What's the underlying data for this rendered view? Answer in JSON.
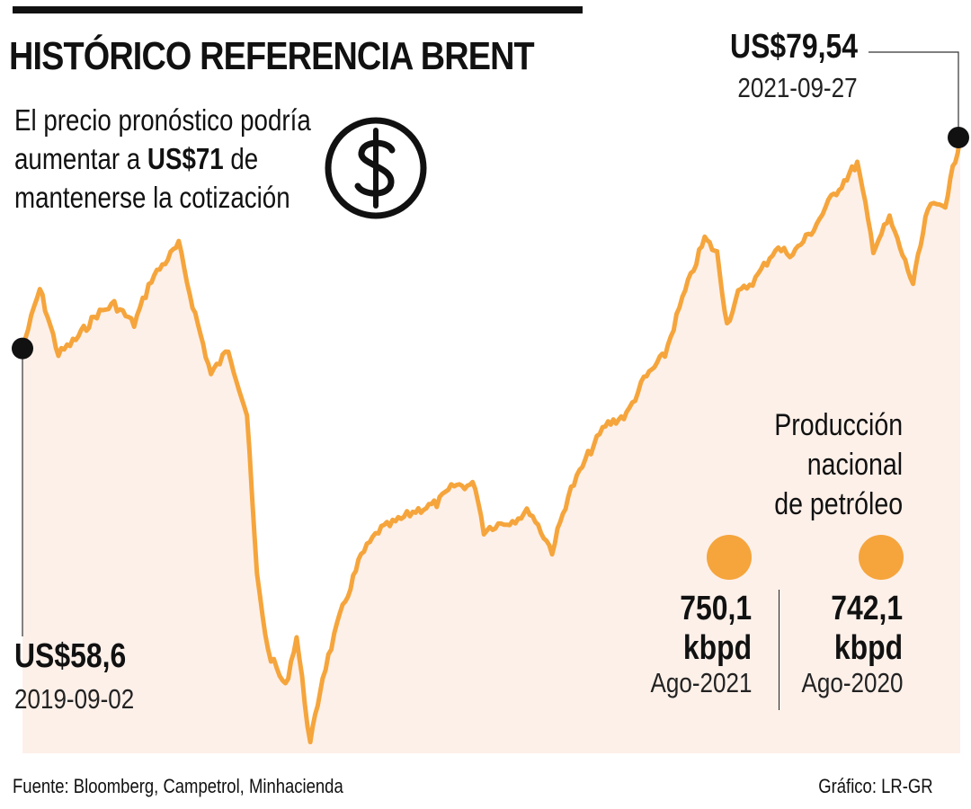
{
  "header": {
    "title": "HISTÓRICO REFERENCIA BRENT",
    "subtitle_line1": "El precio pronóstico podría",
    "subtitle_line2_pre": "aumentar a ",
    "subtitle_line2_bold": "US$71",
    "subtitle_line2_post": " de",
    "subtitle_line3": "mantenerse la cotización",
    "icon": "dollar-circle-icon"
  },
  "chart_data": {
    "type": "area",
    "line_color": "#f5a53c",
    "fill_color": "#fdf0e9",
    "start_label": {
      "value": "US$58,6",
      "date": "2019-09-02"
    },
    "end_label": {
      "value": "US$79,54",
      "date": "2021-09-27"
    },
    "x_start": "2019-09-02",
    "x_end": "2021-09-27",
    "x": [
      "2019-09-02",
      "2019-09-16",
      "2019-10-01",
      "2019-10-15",
      "2019-11-01",
      "2019-11-15",
      "2019-12-01",
      "2019-12-15",
      "2020-01-06",
      "2020-01-15",
      "2020-02-01",
      "2020-02-15",
      "2020-03-01",
      "2020-03-09",
      "2020-03-18",
      "2020-04-01",
      "2020-04-10",
      "2020-04-21",
      "2020-05-01",
      "2020-05-15",
      "2020-06-01",
      "2020-06-15",
      "2020-07-01",
      "2020-07-15",
      "2020-08-01",
      "2020-08-15",
      "2020-09-01",
      "2020-09-08",
      "2020-09-15",
      "2020-10-01",
      "2020-10-15",
      "2020-11-02",
      "2020-11-15",
      "2020-12-01",
      "2020-12-15",
      "2021-01-01",
      "2021-01-15",
      "2021-02-01",
      "2021-02-15",
      "2021-03-05",
      "2021-03-15",
      "2021-03-23",
      "2021-04-01",
      "2021-04-15",
      "2021-05-01",
      "2021-05-15",
      "2021-06-01",
      "2021-06-15",
      "2021-07-06",
      "2021-07-19",
      "2021-08-01",
      "2021-08-20",
      "2021-09-01",
      "2021-09-15",
      "2021-09-27"
    ],
    "y": [
      58.6,
      64.5,
      58.0,
      59.5,
      62.0,
      63.0,
      61.0,
      65.5,
      68.9,
      64.0,
      56.0,
      58.5,
      52.0,
      36.0,
      28.5,
      25.0,
      30.0,
      19.3,
      26.0,
      32.0,
      38.0,
      40.5,
      41.5,
      42.5,
      43.2,
      45.0,
      45.0,
      40.5,
      41.0,
      41.5,
      42.5,
      38.5,
      44.0,
      48.0,
      51.0,
      52.0,
      55.5,
      58.0,
      63.5,
      69.5,
      68.0,
      61.0,
      64.0,
      65.5,
      68.5,
      68.0,
      70.5,
      73.5,
      77.0,
      68.5,
      71.5,
      65.0,
      72.5,
      73.0,
      79.54
    ]
  },
  "production": {
    "title_line1": "Producción",
    "title_line2": "nacional",
    "title_line3": "de petróleo",
    "items": [
      {
        "value": "750,1",
        "unit": "kbpd",
        "date": "Ago-2021",
        "color": "#f5a53c"
      },
      {
        "value": "742,1",
        "unit": "kbpd",
        "date": "Ago-2020",
        "color": "#f5a53c"
      }
    ]
  },
  "footer": {
    "source": "Fuente: Bloomberg, Campetrol, Minhacienda",
    "credit": "Gráfico: LR-GR"
  }
}
